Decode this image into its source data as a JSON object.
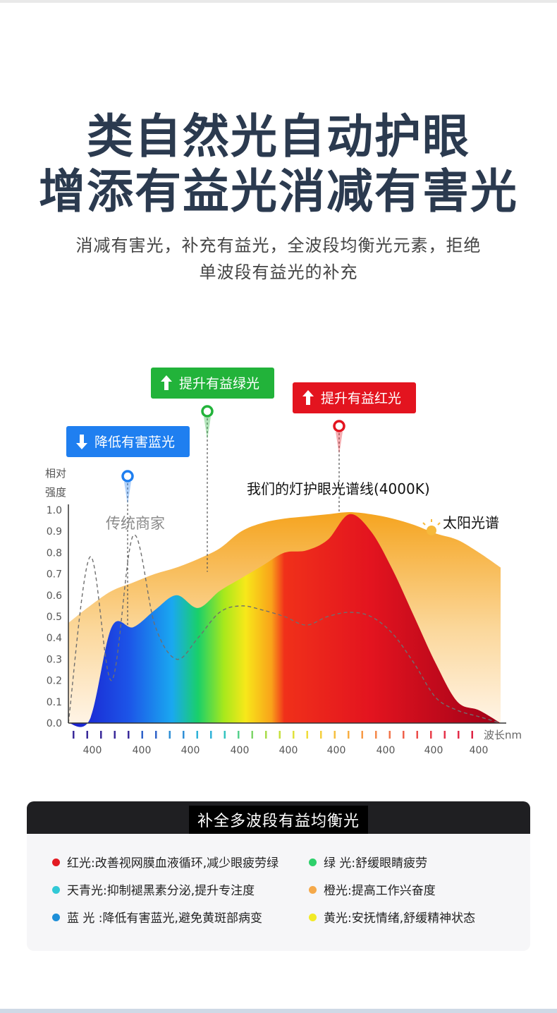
{
  "page": {
    "headline_line1": "类自然光自动护眼",
    "headline_line2": "增添有益光消减有害光",
    "subtitle_line1": "消减有害光，补充有益光，全波段均衡光元素，拒绝",
    "subtitle_line2": "单波段有益光的补充"
  },
  "chart_data": {
    "type": "area",
    "ylabel": "相对\n强度",
    "xlabel": "波长nm",
    "ylim": [
      0,
      1.0
    ],
    "y_ticks": [
      "0.0",
      "0.1",
      "0.2",
      "0.3",
      "0.4",
      "0.5",
      "0.6",
      "0.7",
      "0.8",
      "0.9",
      "1.0"
    ],
    "x_tick_labels": [
      "400",
      "400",
      "400",
      "400",
      "400",
      "400",
      "400",
      "400",
      "400"
    ],
    "grid": false,
    "series": [
      {
        "name": "太阳光谱",
        "color": "#f5a623",
        "values": [
          0.47,
          0.55,
          0.62,
          0.66,
          0.7,
          0.73,
          0.77,
          0.82,
          0.9,
          0.94,
          0.96,
          0.97,
          0.98,
          0.99,
          0.98,
          0.96,
          0.93,
          0.89,
          0.86,
          0.8,
          0.73
        ]
      },
      {
        "name": "我们的灯护眼光谱线(4000K)",
        "color": "spectrum",
        "values": [
          0.0,
          0.02,
          0.45,
          0.45,
          0.53,
          0.6,
          0.54,
          0.62,
          0.68,
          0.74,
          0.8,
          0.81,
          0.86,
          0.98,
          0.9,
          0.72,
          0.5,
          0.28,
          0.1,
          0.06,
          0.0
        ]
      },
      {
        "name": "传统商家",
        "color": "#777777",
        "values": [
          0.0,
          0.78,
          0.2,
          0.88,
          0.46,
          0.3,
          0.4,
          0.52,
          0.55,
          0.53,
          0.5,
          0.46,
          0.5,
          0.52,
          0.5,
          0.42,
          0.28,
          0.12,
          0.06,
          0.03,
          0.0
        ]
      }
    ],
    "annotations": [
      {
        "label": "降低有害蓝光",
        "color": "#1f7ff0",
        "arrow": "down",
        "value": 0.45
      },
      {
        "label": "提升有益绿光",
        "color": "#22b33a",
        "arrow": "up",
        "value": 0.71
      },
      {
        "label": "提升有益红光",
        "color": "#e3141f",
        "arrow": "up",
        "value": 0.99
      }
    ]
  },
  "benefits": {
    "title": "补全多波段有益均衡光",
    "items": [
      {
        "text": "红光:改善视网膜血液循环,减少眼疲劳绿",
        "color": "#e31b23"
      },
      {
        "text": "绿 光:舒缓眼睛疲劳",
        "color": "#2ed06b"
      },
      {
        "text": "天青光:抑制褪黑素分泌,提升专注度",
        "color": "#32c9d6"
      },
      {
        "text": "橙光:提高工作兴奋度",
        "color": "#f5a94a"
      },
      {
        "text": "蓝 光 :降低有害蓝光,避免黄斑部病变",
        "color": "#1e8fd8"
      },
      {
        "text": "黄光:安抚情绪,舒缓精神状态",
        "color": "#f2ea26"
      }
    ]
  }
}
